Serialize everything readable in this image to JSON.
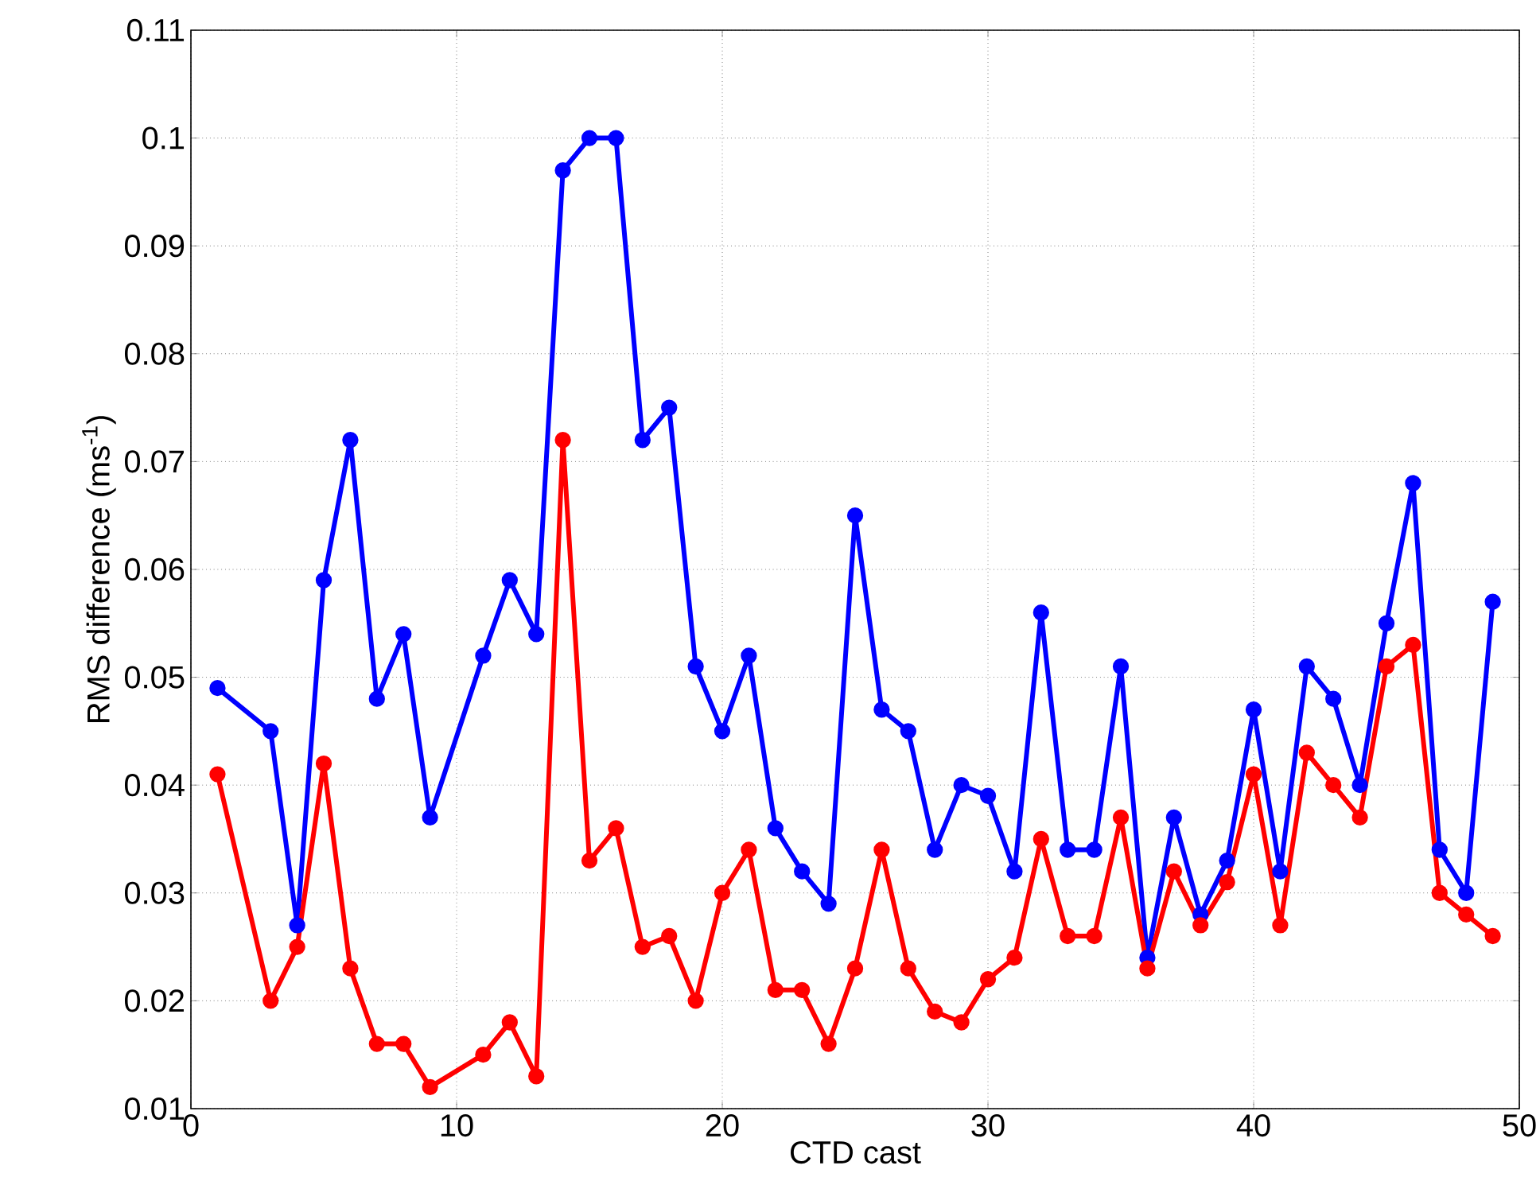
{
  "chart_data": {
    "type": "line",
    "xlabel": "CTD cast",
    "ylabel": "RMS difference (ms$^{-1}$)",
    "x": [
      1,
      3,
      4,
      5,
      6,
      7,
      8,
      9,
      11,
      12,
      13,
      14,
      15,
      16,
      17,
      18,
      19,
      20,
      21,
      22,
      23,
      24,
      25,
      26,
      27,
      28,
      29,
      30,
      31,
      32,
      33,
      34,
      35,
      36,
      37,
      38,
      39,
      40,
      41,
      42,
      43,
      44,
      45,
      46,
      47,
      48,
      49
    ],
    "series": [
      {
        "color": "#0000ff",
        "values": [
          0.049,
          0.045,
          0.027,
          0.059,
          0.072,
          0.048,
          0.054,
          0.037,
          0.052,
          0.059,
          0.054,
          0.097,
          0.1,
          0.1,
          0.072,
          0.075,
          0.051,
          0.045,
          0.052,
          0.036,
          0.032,
          0.029,
          0.065,
          0.047,
          0.045,
          0.034,
          0.04,
          0.039,
          0.032,
          0.056,
          0.034,
          0.034,
          0.051,
          0.024,
          0.037,
          0.028,
          0.033,
          0.047,
          0.032,
          0.051,
          0.048,
          0.04,
          0.055,
          0.068,
          0.034,
          0.03,
          0.057
        ]
      },
      {
        "color": "#ff0000",
        "values": [
          0.041,
          0.02,
          0.025,
          0.042,
          0.023,
          0.016,
          0.016,
          0.012,
          0.015,
          0.018,
          0.013,
          0.072,
          0.033,
          0.036,
          0.025,
          0.026,
          0.02,
          0.03,
          0.034,
          0.021,
          0.021,
          0.016,
          0.023,
          0.034,
          0.023,
          0.019,
          0.018,
          0.022,
          0.024,
          0.035,
          0.026,
          0.026,
          0.037,
          0.023,
          0.032,
          0.027,
          0.031,
          0.041,
          0.027,
          0.043,
          0.04,
          0.037,
          0.051,
          0.053,
          0.03,
          0.028,
          0.026
        ]
      }
    ],
    "xlim": [
      0,
      50
    ],
    "xticks": [
      0,
      10,
      20,
      30,
      40,
      50
    ],
    "ylim": [
      0.01,
      0.11
    ],
    "yticks": [
      0.01,
      0.02,
      0.03,
      0.04,
      0.05,
      0.06,
      0.07,
      0.08,
      0.09,
      0.1,
      0.11
    ],
    "grid": true,
    "marker": "circle",
    "line_style": "solid"
  }
}
